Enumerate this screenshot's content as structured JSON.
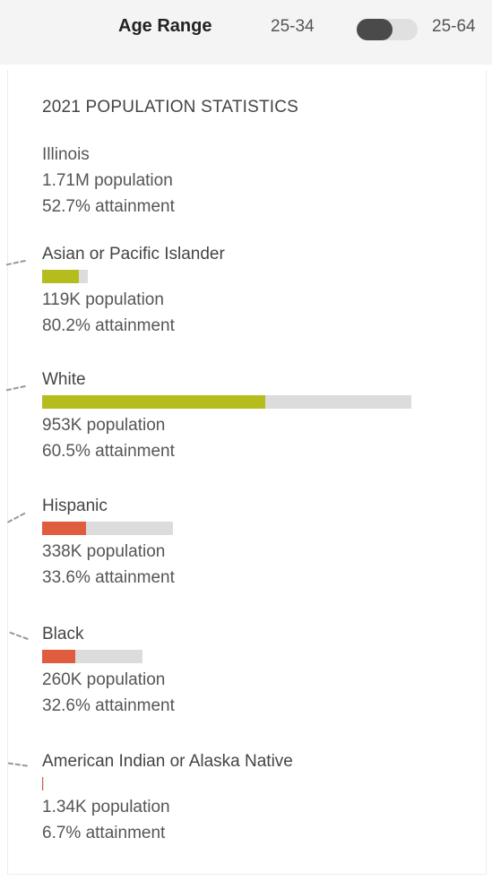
{
  "header": {
    "age_label": "Age Range",
    "range_left": "25-34",
    "range_right": "25-64",
    "toggle_state": "25-34"
  },
  "panel": {
    "heading": "2021 POPULATION STATISTICS",
    "state": {
      "name": "Illinois",
      "population": "1.71M population",
      "attainment": "52.7% attainment"
    },
    "groups": [
      {
        "name": "Asian or Pacific Islander",
        "population": "119K population",
        "attainment": "80.2% attainment",
        "population_value": 119000,
        "attainment_pct": 80.2,
        "color": "#b5bd1e"
      },
      {
        "name": "White",
        "population": "953K population",
        "attainment": "60.5% attainment",
        "population_value": 953000,
        "attainment_pct": 60.5,
        "color": "#b5bd1e"
      },
      {
        "name": "Hispanic",
        "population": "338K population",
        "attainment": "33.6% attainment",
        "population_value": 338000,
        "attainment_pct": 33.6,
        "color": "#e05c3e"
      },
      {
        "name": "Black",
        "population": "260K population",
        "attainment": "32.6% attainment",
        "population_value": 260000,
        "attainment_pct": 32.6,
        "color": "#e05c3e"
      },
      {
        "name": "American Indian or Alaska Native",
        "population": "1.34K population",
        "attainment": "6.7% attainment",
        "population_value": 1340,
        "attainment_pct": 6.7,
        "color": "#e05c3e"
      }
    ]
  }
}
